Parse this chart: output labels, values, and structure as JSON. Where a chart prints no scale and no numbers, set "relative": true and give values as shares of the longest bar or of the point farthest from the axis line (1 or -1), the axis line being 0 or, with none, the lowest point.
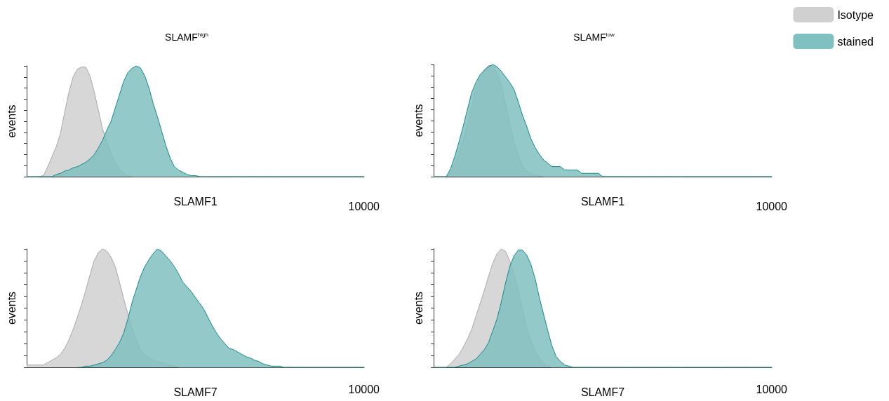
{
  "chart_data": [
    {
      "type": "area",
      "title": "SLAMF$^{high}$",
      "xlabel": "SLAMF1",
      "ylabel": "events",
      "relative": true,
      "annotations": [
        "10000"
      ],
      "grid": false,
      "legend": false,
      "marker": "none",
      "categories": [
        null,
        null,
        null,
        null,
        null,
        null,
        null,
        null,
        null,
        null,
        null,
        null,
        null,
        null,
        null,
        null,
        null,
        null,
        null,
        null,
        null,
        null,
        null,
        null,
        null,
        null,
        null,
        null,
        null,
        null,
        null,
        null,
        null,
        null,
        null,
        null,
        null,
        null,
        null,
        null,
        null,
        null,
        null,
        null,
        null,
        null,
        null,
        null,
        null,
        null,
        null,
        null,
        null,
        null,
        null,
        null,
        null,
        null,
        null,
        null,
        null,
        null,
        null,
        null,
        null,
        null,
        null,
        null,
        null,
        null,
        null,
        null,
        null,
        null,
        null,
        null,
        null,
        null,
        null,
        null,
        null
      ],
      "series": [
        {
          "color": "#a8a8a8",
          "values": [
            0,
            0,
            0,
            0,
            0.01,
            0.09,
            0.18,
            0.27,
            0.39,
            0.58,
            0.76,
            0.9,
            0.97,
            0.99,
            0.99,
            0.91,
            0.77,
            0.6,
            0.43,
            0.32,
            0.21,
            0.13,
            0.07,
            0.03,
            0.01,
            0,
            0,
            0,
            0,
            0,
            0,
            0,
            0,
            0,
            0,
            0,
            0,
            0,
            0,
            0,
            0,
            0,
            0,
            0,
            0,
            0,
            0,
            0,
            0,
            0,
            0,
            0,
            0,
            0,
            0,
            0,
            0,
            0,
            0,
            0,
            0,
            0,
            0,
            0,
            0,
            0,
            0,
            0,
            0,
            0,
            0,
            0,
            0,
            0,
            0,
            0,
            0,
            0,
            0,
            0,
            0
          ]
        },
        {
          "color": "#148a8a",
          "values": [
            0,
            0,
            0,
            0,
            0,
            0,
            0,
            0.02,
            0.03,
            0.05,
            0.06,
            0.08,
            0.09,
            0.11,
            0.13,
            0.16,
            0.2,
            0.26,
            0.33,
            0.42,
            0.5,
            0.62,
            0.74,
            0.86,
            0.94,
            0.98,
            1,
            0.98,
            0.91,
            0.8,
            0.66,
            0.54,
            0.41,
            0.28,
            0.17,
            0.09,
            0.06,
            0.04,
            0.02,
            0.01,
            0.01,
            0,
            0,
            0,
            0,
            0,
            0,
            0,
            0,
            0,
            0,
            0,
            0,
            0,
            0,
            0,
            0,
            0,
            0,
            0,
            0,
            0,
            0,
            0,
            0,
            0,
            0,
            0,
            0,
            0,
            0,
            0,
            0,
            0,
            0,
            0,
            0,
            0,
            0,
            0,
            0
          ]
        }
      ]
    },
    {
      "type": "area",
      "title": "SLAMF$^{low}$",
      "xlabel": "SLAMF1",
      "ylabel": "events",
      "relative": true,
      "annotations": [
        "10000"
      ],
      "grid": false,
      "legend": "top right",
      "marker": "none",
      "categories": [
        null,
        null,
        null,
        null,
        null,
        null,
        null,
        null,
        null,
        null,
        null,
        null,
        null,
        null,
        null,
        null,
        null,
        null,
        null,
        null,
        null,
        null,
        null,
        null,
        null,
        null,
        null,
        null,
        null,
        null,
        null,
        null,
        null,
        null,
        null,
        null,
        null,
        null,
        null,
        null,
        null,
        null,
        null,
        null,
        null,
        null,
        null,
        null,
        null,
        null,
        null,
        null,
        null,
        null,
        null,
        null,
        null,
        null,
        null,
        null,
        null,
        null,
        null,
        null,
        null,
        null,
        null,
        null,
        null,
        null,
        null,
        null,
        null,
        null,
        null,
        null,
        null,
        null,
        null,
        null,
        null
      ],
      "series": [
        {
          "name": "Isotype",
          "color": "#a8a8a8",
          "values": [
            0,
            0,
            0,
            0,
            0.04,
            0.11,
            0.21,
            0.33,
            0.47,
            0.63,
            0.78,
            0.89,
            0.95,
            0.99,
            0.99,
            0.93,
            0.81,
            0.65,
            0.47,
            0.31,
            0.19,
            0.1,
            0.05,
            0.03,
            0.01,
            0.01,
            0,
            0,
            0,
            0,
            0,
            0,
            0,
            0,
            0,
            0,
            0,
            0,
            0,
            0,
            0,
            0,
            0,
            0,
            0,
            0,
            0,
            0,
            0,
            0,
            0,
            0,
            0,
            0,
            0,
            0,
            0,
            0,
            0,
            0,
            0,
            0,
            0,
            0,
            0,
            0,
            0,
            0,
            0,
            0,
            0,
            0,
            0,
            0,
            0,
            0,
            0,
            0,
            0,
            0,
            0
          ]
        },
        {
          "name": "stained",
          "color": "#148a8a",
          "values": [
            0,
            0,
            0,
            0,
            0.07,
            0.18,
            0.31,
            0.45,
            0.6,
            0.75,
            0.84,
            0.91,
            0.95,
            0.98,
            1,
            0.98,
            0.94,
            0.89,
            0.84,
            0.78,
            0.67,
            0.55,
            0.45,
            0.34,
            0.26,
            0.2,
            0.15,
            0.12,
            0.09,
            0.09,
            0.09,
            0.06,
            0.06,
            0.06,
            0.06,
            0.03,
            0.03,
            0.03,
            0.03,
            0.03,
            0,
            0,
            0,
            0,
            0,
            0,
            0,
            0,
            0,
            0,
            0,
            0,
            0,
            0,
            0,
            0,
            0,
            0,
            0,
            0,
            0,
            0,
            0,
            0,
            0,
            0,
            0,
            0,
            0,
            0,
            0,
            0,
            0,
            0,
            0,
            0,
            0,
            0,
            0,
            0,
            0
          ]
        }
      ]
    },
    {
      "type": "area",
      "xlabel": "SLAMF7",
      "ylabel": "events",
      "relative": true,
      "annotations": [
        "10000"
      ],
      "grid": false,
      "legend": false,
      "marker": "none",
      "categories": [
        null,
        null,
        null,
        null,
        null,
        null,
        null,
        null,
        null,
        null,
        null,
        null,
        null,
        null,
        null,
        null,
        null,
        null,
        null,
        null,
        null,
        null,
        null,
        null,
        null,
        null,
        null,
        null,
        null,
        null,
        null,
        null,
        null,
        null,
        null,
        null,
        null,
        null,
        null,
        null,
        null,
        null,
        null,
        null,
        null,
        null,
        null,
        null,
        null,
        null,
        null,
        null,
        null,
        null,
        null,
        null,
        null,
        null,
        null,
        null,
        null,
        null,
        null,
        null,
        null,
        null,
        null,
        null,
        null,
        null,
        null,
        null,
        null,
        null,
        null,
        null,
        null,
        null,
        null,
        null,
        null
      ],
      "series": [
        {
          "color": "#a8a8a8",
          "values": [
            0.02,
            0.02,
            0.02,
            0.02,
            0.02,
            0.04,
            0.06,
            0.08,
            0.11,
            0.16,
            0.23,
            0.32,
            0.42,
            0.53,
            0.65,
            0.78,
            0.9,
            0.97,
            1,
            0.98,
            0.93,
            0.85,
            0.72,
            0.58,
            0.45,
            0.33,
            0.23,
            0.15,
            0.1,
            0.08,
            0.06,
            0.05,
            0.04,
            0.03,
            0.02,
            0.01,
            0,
            0,
            0,
            0,
            0,
            0,
            0,
            0,
            0,
            0,
            0,
            0,
            0,
            0,
            0,
            0,
            0,
            0,
            0,
            0,
            0,
            0,
            0,
            0,
            0,
            0,
            0,
            0,
            0,
            0,
            0,
            0,
            0,
            0,
            0,
            0,
            0,
            0,
            0,
            0,
            0,
            0,
            0,
            0,
            0
          ]
        },
        {
          "color": "#148a8a",
          "values": [
            null,
            null,
            null,
            null,
            null,
            null,
            null,
            null,
            null,
            null,
            null,
            null,
            0,
            0,
            0.01,
            0.01,
            0.02,
            0.03,
            0.04,
            0.06,
            0.1,
            0.15,
            0.21,
            0.29,
            0.41,
            0.55,
            0.66,
            0.77,
            0.85,
            0.91,
            0.96,
            1,
            0.98,
            0.94,
            0.9,
            0.85,
            0.79,
            0.72,
            0.68,
            0.64,
            0.59,
            0.54,
            0.49,
            0.42,
            0.35,
            0.29,
            0.24,
            0.2,
            0.16,
            0.15,
            0.13,
            0.11,
            0.09,
            0.08,
            0.06,
            0.05,
            0.03,
            0.02,
            0.01,
            0.01,
            0.01,
            0,
            0,
            0,
            0,
            0,
            0,
            0,
            0,
            0,
            0,
            0,
            0,
            0,
            0,
            0,
            0,
            0,
            0,
            0,
            0
          ]
        }
      ]
    },
    {
      "type": "area",
      "xlabel": "SLAMF7",
      "ylabel": "events",
      "relative": true,
      "annotations": [
        "10000"
      ],
      "grid": false,
      "legend": false,
      "marker": "none",
      "categories": [
        null,
        null,
        null,
        null,
        null,
        null,
        null,
        null,
        null,
        null,
        null,
        null,
        null,
        null,
        null,
        null,
        null,
        null,
        null,
        null,
        null,
        null,
        null,
        null,
        null,
        null,
        null,
        null,
        null,
        null,
        null,
        null,
        null,
        null,
        null,
        null,
        null,
        null,
        null,
        null,
        null,
        null,
        null,
        null,
        null,
        null,
        null,
        null,
        null,
        null,
        null,
        null,
        null,
        null,
        null,
        null,
        null,
        null,
        null,
        null,
        null,
        null,
        null,
        null,
        null,
        null,
        null,
        null,
        null,
        null,
        null,
        null,
        null,
        null,
        null,
        null,
        null,
        null,
        null,
        null,
        null
      ],
      "series": [
        {
          "color": "#a8a8a8",
          "values": [
            0,
            0,
            0,
            0,
            0.03,
            0.07,
            0.11,
            0.17,
            0.24,
            0.32,
            0.43,
            0.54,
            0.65,
            0.77,
            0.88,
            0.96,
            1,
            0.98,
            0.9,
            0.79,
            0.65,
            0.49,
            0.34,
            0.22,
            0.14,
            0.08,
            0.04,
            0.01,
            0,
            0,
            0,
            0,
            0,
            0,
            0,
            0,
            0,
            0,
            0,
            0,
            0,
            0,
            0,
            0,
            0,
            0,
            0,
            0,
            0,
            0,
            0,
            0,
            0,
            0,
            0,
            0,
            0,
            0,
            0,
            0,
            0,
            0,
            0,
            0,
            0,
            0,
            0,
            0,
            0,
            0,
            0,
            0,
            0,
            0,
            0,
            0,
            0,
            0,
            0,
            0,
            0
          ]
        },
        {
          "color": "#148a8a",
          "values": [
            0,
            0,
            0,
            0,
            0,
            0,
            0.01,
            0.02,
            0.03,
            0.05,
            0.07,
            0.11,
            0.15,
            0.21,
            0.31,
            0.41,
            0.55,
            0.71,
            0.85,
            0.94,
            0.99,
            0.99,
            0.95,
            0.87,
            0.75,
            0.59,
            0.45,
            0.31,
            0.18,
            0.09,
            0.05,
            0.02,
            0.01,
            0,
            0,
            0,
            0,
            0,
            0,
            0,
            0,
            0,
            0,
            0,
            0,
            0,
            0,
            0,
            0,
            0,
            0,
            0,
            0,
            0,
            0,
            0,
            0,
            0,
            0,
            0,
            0,
            0,
            0,
            0,
            0,
            0,
            0,
            0,
            0,
            0,
            0,
            0,
            0,
            0,
            0,
            0,
            0,
            0,
            0,
            0,
            0
          ]
        }
      ]
    }
  ]
}
